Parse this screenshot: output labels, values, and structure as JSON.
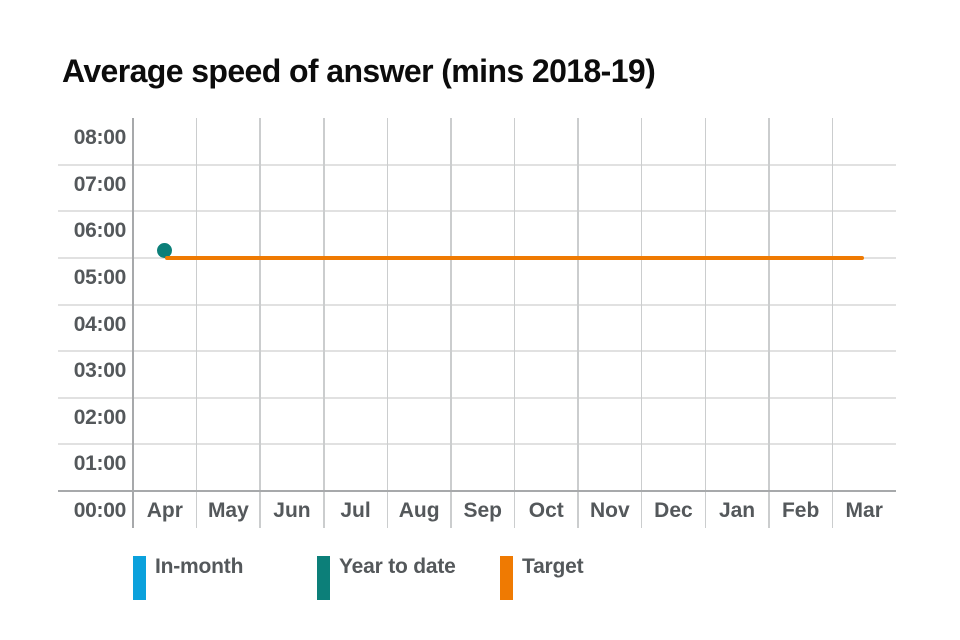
{
  "title": "Average speed of answer (mins 2018-19)",
  "chart_data": {
    "type": "line",
    "title": "Average speed of answer (mins 2018-19)",
    "x_categories": [
      "Apr",
      "May",
      "Jun",
      "Jul",
      "Aug",
      "Sep",
      "Oct",
      "Nov",
      "Dec",
      "Jan",
      "Feb",
      "Mar"
    ],
    "y_axis": {
      "ticks_top_to_bottom": [
        "08:00",
        "07:00",
        "06:00",
        "05:00",
        "04:00",
        "03:00",
        "02:00",
        "01:00",
        "00:00"
      ],
      "min_seconds": 0,
      "max_seconds": 480,
      "tick_step_seconds": 60,
      "tick_format": "mm:ss"
    },
    "grid": true,
    "legend_position": "bottom",
    "series": [
      {
        "name": "In-month",
        "type": "point",
        "color": "#0ba1dc",
        "values_seconds": [
          null,
          null,
          null,
          null,
          null,
          null,
          null,
          null,
          null,
          null,
          null,
          null
        ],
        "values_display": [
          null,
          null,
          null,
          null,
          null,
          null,
          null,
          null,
          null,
          null,
          null,
          null
        ]
      },
      {
        "name": "Year to date",
        "type": "point",
        "color": "#0c7f79",
        "values_seconds": [
          309,
          null,
          null,
          null,
          null,
          null,
          null,
          null,
          null,
          null,
          null,
          null
        ],
        "values_display": [
          "05:09",
          null,
          null,
          null,
          null,
          null,
          null,
          null,
          null,
          null,
          null,
          null
        ]
      },
      {
        "name": "Target",
        "type": "hline",
        "color": "#ef7a02",
        "value_seconds": 300,
        "value_display": "05:00",
        "span_categories": [
          "Apr",
          "Mar"
        ]
      }
    ],
    "legend": [
      {
        "label": "In-month",
        "color": "#0ba1dc"
      },
      {
        "label": "Year to date",
        "color": "#0c7f79"
      },
      {
        "label": "Target",
        "color": "#ef7a02"
      }
    ]
  }
}
